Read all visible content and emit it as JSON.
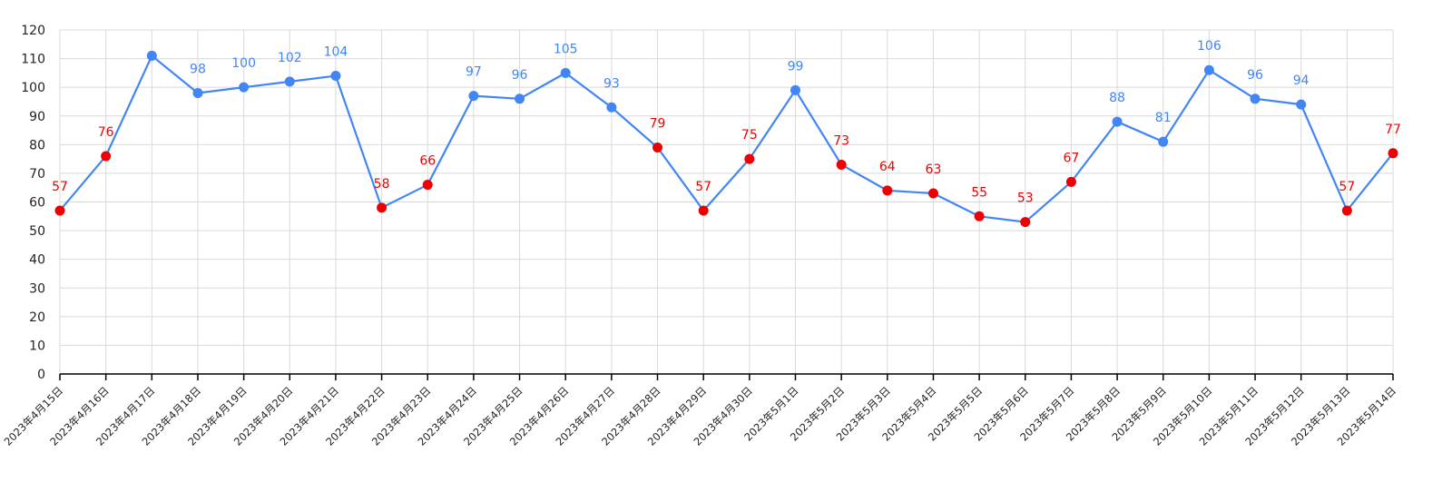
{
  "chart_data": {
    "type": "line",
    "title": "",
    "xlabel": "",
    "ylabel": "",
    "ylim": [
      0,
      120
    ],
    "ytick_step": 10,
    "grid": true,
    "categories": [
      "2023年4月15日",
      "2023年4月16日",
      "2023年4月17日",
      "2023年4月18日",
      "2023年4月19日",
      "2023年4月20日",
      "2023年4月21日",
      "2023年4月22日",
      "2023年4月23日",
      "2023年4月24日",
      "2023年4月25日",
      "2023年4月26日",
      "2023年4月27日",
      "2023年4月28日",
      "2023年4月29日",
      "2023年4月30日",
      "2023年5月1日",
      "2023年5月2日",
      "2023年5月3日",
      "2023年5月4日",
      "2023年5月5日",
      "2023年5月6日",
      "2023年5月7日",
      "2023年5月8日",
      "2023年5月9日",
      "2023年5月10日",
      "2023年5月11日",
      "2023年5月12日",
      "2023年5月13日",
      "2023年5月14日"
    ],
    "series": [
      {
        "values": [
          57,
          76,
          111,
          98,
          100,
          102,
          104,
          58,
          66,
          97,
          96,
          105,
          93,
          79,
          57,
          75,
          99,
          73,
          64,
          63,
          55,
          53,
          67,
          88,
          81,
          106,
          96,
          94,
          57,
          77
        ],
        "labels": [
          "57",
          "76",
          "",
          "98",
          "100",
          "102",
          "104",
          "58",
          "66",
          "97",
          "96",
          "105",
          "93",
          "79",
          "57",
          "75",
          "99",
          "73",
          "64",
          "63",
          "55",
          "53",
          "67",
          "88",
          "81",
          "106",
          "96",
          "94",
          "57",
          "77"
        ],
        "color": "#4285f4"
      }
    ],
    "highlight_rule": "values below 80 shown as red points",
    "highlight_threshold": 80,
    "highlight_color": "#ee0000",
    "normal_point_color": "#4285f4",
    "grid_color": "#d9d9d9",
    "axis_color": "#000000"
  }
}
